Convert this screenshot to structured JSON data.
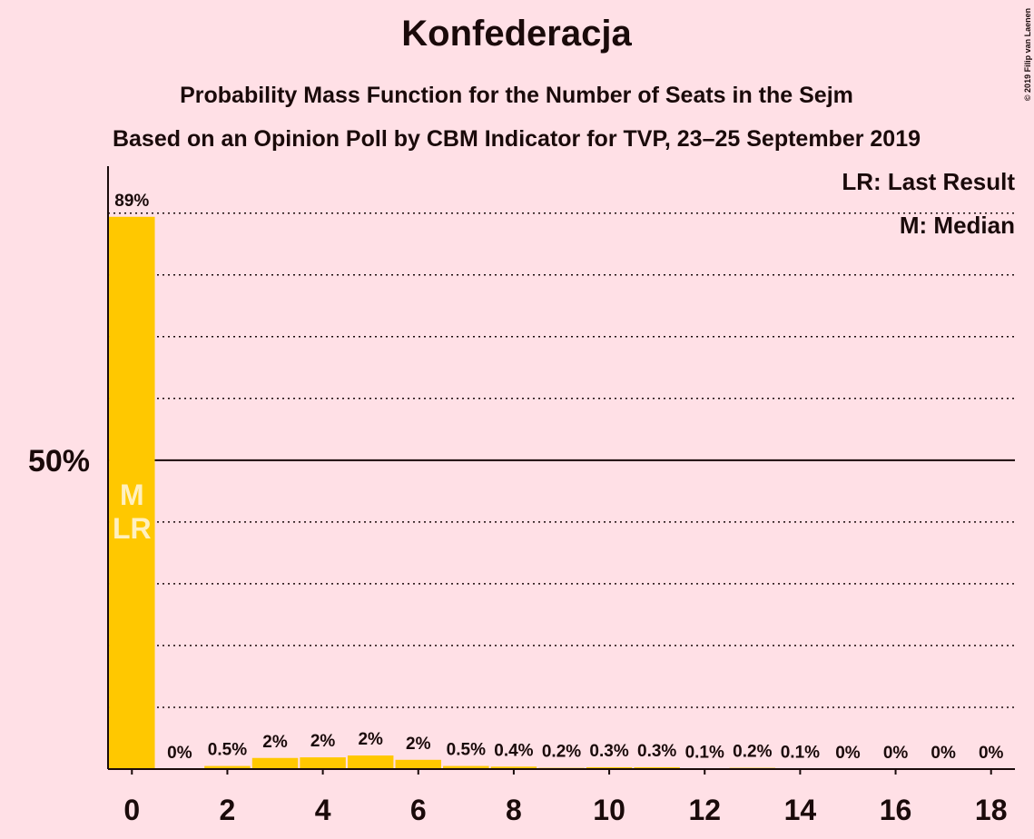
{
  "chart_data": {
    "type": "bar",
    "title": "Konfederacja",
    "subtitle": "Probability Mass Function for the Number of Seats in the Sejm",
    "subtitle2": "Based on an Opinion Poll by CBM Indicator for TVP, 23–25 September 2019",
    "copyright": "© 2019 Filip van Laenen",
    "legend": [
      "LR: Last Result",
      "M: Median"
    ],
    "median_label": "M",
    "last_result_label": "LR",
    "median_seats": 0,
    "last_result_seats": 0,
    "x": [
      0,
      1,
      2,
      3,
      4,
      5,
      6,
      7,
      8,
      9,
      10,
      11,
      12,
      13,
      14,
      15,
      16,
      17,
      18
    ],
    "values": [
      89.4,
      0,
      0.5,
      1.8,
      1.9,
      2.2,
      1.5,
      0.5,
      0.4,
      0.2,
      0.3,
      0.3,
      0.1,
      0.2,
      0.1,
      0,
      0,
      0,
      0
    ],
    "value_labels": [
      "89%",
      "0%",
      "0.5%",
      "2%",
      "2%",
      "2%",
      "2%",
      "0.5%",
      "0.4%",
      "0.2%",
      "0.3%",
      "0.3%",
      "0.1%",
      "0.2%",
      "0.1%",
      "0%",
      "0%",
      "0%",
      "0%"
    ],
    "color": "#ffc800",
    "xlim": [
      -0.5,
      18.5
    ],
    "xticks": [
      0,
      2,
      4,
      6,
      8,
      10,
      12,
      14,
      16,
      18
    ],
    "ylim": [
      0,
      97.6
    ],
    "yticks": [
      {
        "value": 50,
        "label": "50%"
      }
    ],
    "grid_minor": [
      10,
      20,
      30,
      40,
      60,
      70,
      80,
      90
    ]
  }
}
